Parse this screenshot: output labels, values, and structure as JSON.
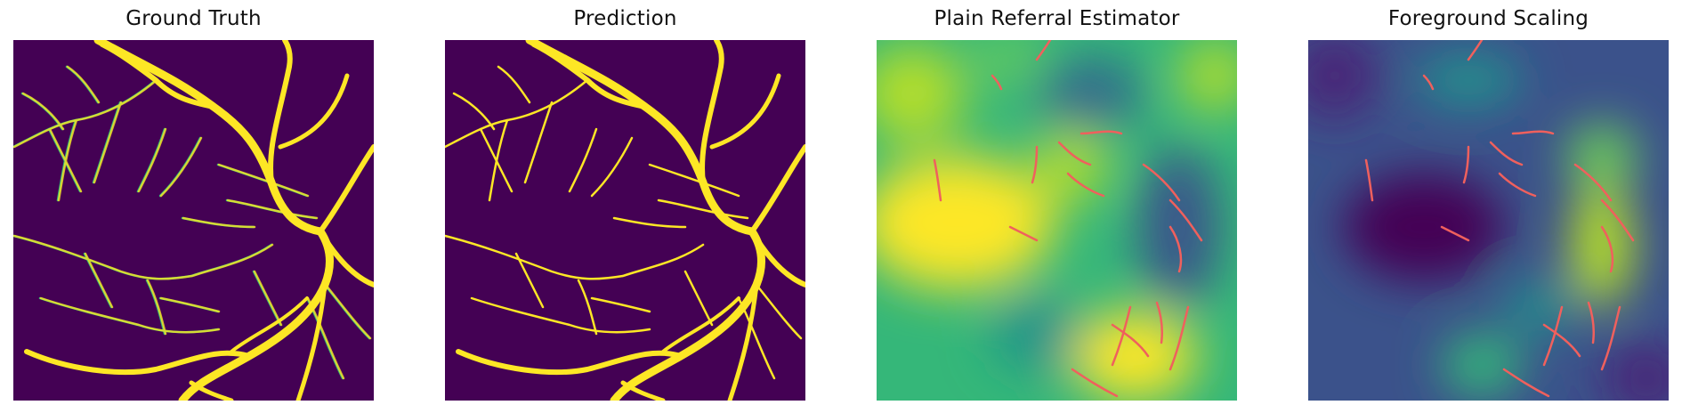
{
  "figure": {
    "panels": [
      {
        "title": "Ground Truth"
      },
      {
        "title": "Prediction"
      },
      {
        "title": "Plain Referral Estimator"
      },
      {
        "title": "Foreground Scaling"
      }
    ]
  },
  "colors": {
    "background_dark": "#440154",
    "vessel_yellow": "#fde725",
    "vessel_teal": "#35b779",
    "overlay_red": "#f0605d"
  }
}
